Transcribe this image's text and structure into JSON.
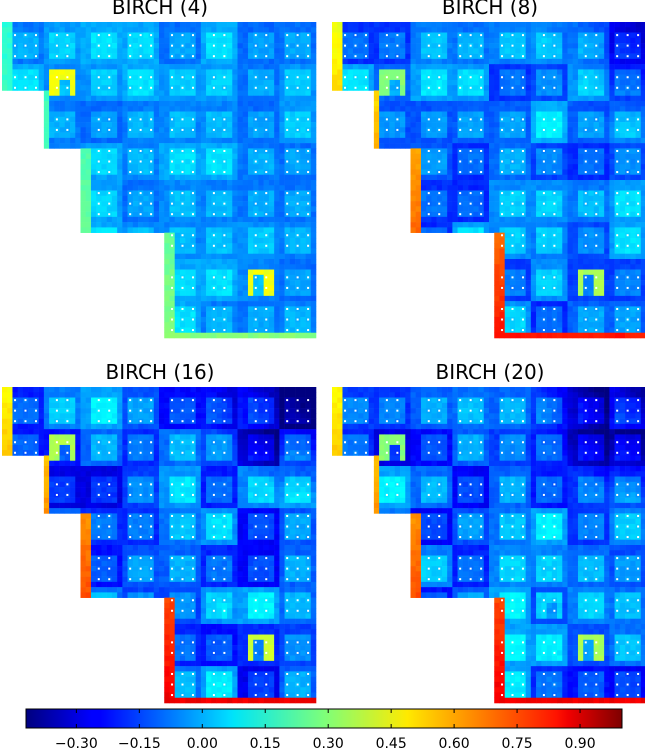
{
  "chart_data": {
    "type": "heatmap",
    "panels": [
      {
        "title": "BIRCH (4)",
        "bias": -0.02,
        "spread": 0.05,
        "hot_corner": 0.0,
        "edge": 0.3,
        "special": [
          [
            1,
            1,
            0.45
          ],
          [
            6,
            6,
            0.45
          ]
        ]
      },
      {
        "title": "BIRCH (8)",
        "bias": -0.05,
        "spread": 0.1,
        "hot_corner": -0.2,
        "edge": 0.8,
        "special": [
          [
            1,
            1,
            0.3
          ],
          [
            6,
            6,
            0.35
          ],
          [
            5,
            5,
            0.05
          ]
        ]
      },
      {
        "title": "BIRCH (16)",
        "bias": -0.08,
        "spread": 0.14,
        "hot_corner": -0.35,
        "edge": 0.85,
        "special": [
          [
            1,
            1,
            0.35
          ],
          [
            6,
            6,
            0.4
          ],
          [
            5,
            5,
            0.05
          ]
        ]
      },
      {
        "title": "BIRCH (20)",
        "bias": -0.08,
        "spread": 0.14,
        "hot_corner": -0.38,
        "edge": 0.85,
        "special": [
          [
            1,
            1,
            0.3
          ],
          [
            6,
            6,
            0.35
          ],
          [
            5,
            5,
            0.05
          ]
        ]
      }
    ],
    "colorbar": {
      "min": -0.42,
      "max": 1.0,
      "ticks": [
        -0.3,
        -0.15,
        0.0,
        0.15,
        0.3,
        0.45,
        0.6,
        0.75,
        0.9
      ],
      "tick_labels": [
        "−0.30",
        "−0.15",
        "0.00",
        "0.15",
        "0.30",
        "0.45",
        "0.60",
        "0.75",
        "0.90"
      ],
      "colormap": "jet"
    }
  }
}
